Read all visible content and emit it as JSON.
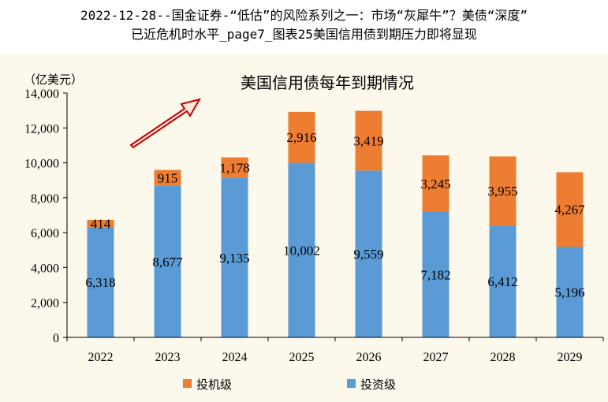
{
  "header": {
    "line1": "2022-12-28--国金证券-“低估”的风险系列之一：市场“灰犀牛”？美债“深度”",
    "line2": "已近危机时水平_page7_图表25美国信用债到期压力即将显现"
  },
  "chart_data": {
    "type": "bar",
    "stacked": true,
    "title": "美国信用债每年到期情况",
    "unit": "（亿美元）",
    "categories": [
      "2022",
      "2023",
      "2024",
      "2025",
      "2026",
      "2027",
      "2028",
      "2029"
    ],
    "series": [
      {
        "name": "投资级",
        "color": "#5b9bd5",
        "values": [
          6318,
          8677,
          9135,
          10002,
          9559,
          7182,
          6412,
          5196
        ]
      },
      {
        "name": "投机级",
        "color": "#ed7d31",
        "values": [
          414,
          915,
          1178,
          2916,
          3419,
          3245,
          3955,
          4267
        ]
      }
    ],
    "labels": {
      "投资级": [
        "6,318",
        "8,677",
        "9,135",
        "10,002",
        "9,559",
        "7,182",
        "6,412",
        "5,196"
      ],
      "投机级": [
        "414",
        "915",
        "1,178",
        "2,916",
        "3,419",
        "3,245",
        "3,955",
        "4,267"
      ]
    },
    "ylim": [
      0,
      14000
    ],
    "yticks": [
      0,
      2000,
      4000,
      6000,
      8000,
      10000,
      12000,
      14000
    ],
    "ytick_labels": [
      "0",
      "2,000",
      "4,000",
      "6,000",
      "8,000",
      "10,000",
      "12,000",
      "14,000"
    ],
    "grid": false,
    "legend": {
      "placement": "bottom",
      "order": [
        "投机级",
        "投资级"
      ]
    },
    "annotation": {
      "type": "arrow",
      "direction": "up-right",
      "fill": "#fde9d9",
      "stroke": "#c00000"
    }
  }
}
